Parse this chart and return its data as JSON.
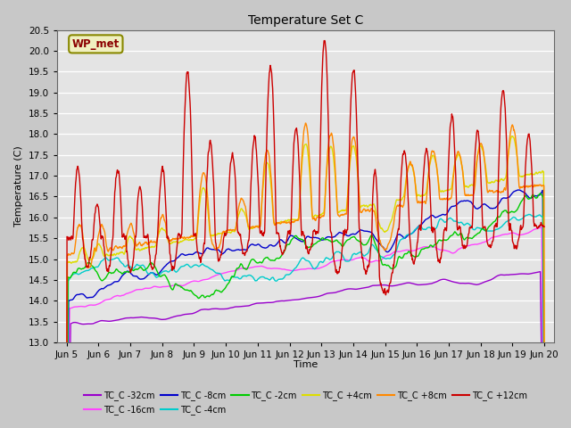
{
  "title": "Temperature Set C",
  "xlabel": "Time",
  "ylabel": "Temperature (C)",
  "ylim": [
    13.0,
    20.5
  ],
  "annotation": "WP_met",
  "background_color": "#d4d4d4",
  "plot_bg_color": "#e8e8e8",
  "grid_color": "#ffffff",
  "series": [
    {
      "label": "TC_C -32cm",
      "color": "#9900cc",
      "lw": 1.0
    },
    {
      "label": "TC_C -16cm",
      "color": "#ff44ff",
      "lw": 1.0
    },
    {
      "label": "TC_C -8cm",
      "color": "#0000cc",
      "lw": 1.0
    },
    {
      "label": "TC_C -4cm",
      "color": "#00cccc",
      "lw": 1.0
    },
    {
      "label": "TC_C -2cm",
      "color": "#00cc00",
      "lw": 1.0
    },
    {
      "label": "TC_C +4cm",
      "color": "#dddd00",
      "lw": 1.0
    },
    {
      "label": "TC_C +8cm",
      "color": "#ff8800",
      "lw": 1.0
    },
    {
      "label": "TC_C +12cm",
      "color": "#cc0000",
      "lw": 1.0
    }
  ],
  "xtick_labels": [
    "Jun 5",
    "Jun 6",
    "Jun 7",
    "Jun 8",
    "Jun 9",
    "Jun 10",
    "Jun 11",
    "Jun 12",
    "Jun 13",
    "Jun 14",
    "Jun 15",
    "Jun 16",
    "Jun 17",
    "Jun 18",
    "Jun 19",
    "Jun 20"
  ],
  "ytick_values": [
    13.0,
    13.5,
    14.0,
    14.5,
    15.0,
    15.5,
    16.0,
    16.5,
    17.0,
    17.5,
    18.0,
    18.5,
    19.0,
    19.5,
    20.0,
    20.5
  ]
}
